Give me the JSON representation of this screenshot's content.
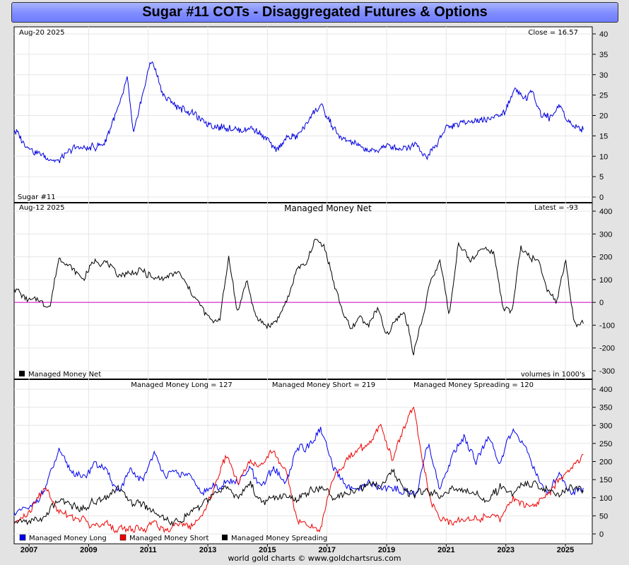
{
  "title": "Sugar #11 COTs - Disaggregated Futures & Options",
  "footer": "world gold charts © www.goldchartsrus.com",
  "colors": {
    "price": "#0000dd",
    "net": "#000000",
    "zero": "#cc00cc",
    "long": "#0000ee",
    "short": "#ee0000",
    "spreading": "#000000"
  },
  "chart_data": [
    {
      "type": "line",
      "id": "price",
      "date_label": "Aug-20  2025",
      "latest_label": "Close = 16.57",
      "series_label": "Sugar #11",
      "ylim": [
        0,
        40
      ],
      "yticks": [
        0,
        5,
        10,
        15,
        20,
        25,
        30,
        35,
        40
      ],
      "x": [
        2006.5,
        2007.0,
        2007.5,
        2008.0,
        2008.5,
        2009.0,
        2009.5,
        2010.0,
        2010.3,
        2010.5,
        2010.8,
        2011.1,
        2011.5,
        2012.0,
        2012.5,
        2013.0,
        2013.5,
        2014.0,
        2014.5,
        2015.0,
        2015.3,
        2015.7,
        2016.0,
        2016.5,
        2016.8,
        2017.0,
        2017.5,
        2018.0,
        2018.5,
        2019.0,
        2019.5,
        2020.0,
        2020.3,
        2020.6,
        2021.0,
        2021.5,
        2022.0,
        2022.5,
        2023.0,
        2023.3,
        2023.6,
        2023.9,
        2024.2,
        2024.5,
        2024.8,
        2025.2,
        2025.6
      ],
      "values": [
        16.5,
        12,
        10,
        8.8,
        12,
        12,
        12.8,
        22,
        29,
        15.5,
        25,
        34,
        25,
        22,
        20.5,
        18,
        17,
        16.5,
        17,
        14,
        11.5,
        14.5,
        15,
        20,
        23,
        19.5,
        14,
        13,
        11,
        12.5,
        12,
        13,
        9.5,
        12,
        17,
        18,
        19,
        19,
        21,
        27,
        24,
        26,
        20,
        19.5,
        22.5,
        17.5,
        16.5
      ]
    },
    {
      "type": "line",
      "id": "net",
      "date_label": "Aug-12  2025",
      "title": "Managed Money Net",
      "latest_label": "Latest = -93",
      "legend": "Managed Money Net",
      "units_label": "volumes in 1000's",
      "ylim": [
        -300,
        400
      ],
      "yticks": [
        -300,
        -200,
        -100,
        0,
        100,
        200,
        300,
        400
      ],
      "x": [
        2006.5,
        2006.9,
        2007.3,
        2007.7,
        2008.0,
        2008.4,
        2008.8,
        2009.2,
        2009.6,
        2010.0,
        2010.4,
        2010.8,
        2011.2,
        2011.6,
        2012.0,
        2012.4,
        2012.8,
        2013.1,
        2013.4,
        2013.7,
        2014.0,
        2014.3,
        2014.6,
        2015.0,
        2015.3,
        2015.7,
        2016.0,
        2016.3,
        2016.6,
        2016.9,
        2017.2,
        2017.5,
        2017.8,
        2018.1,
        2018.4,
        2018.7,
        2019.0,
        2019.3,
        2019.6,
        2019.9,
        2020.2,
        2020.5,
        2020.8,
        2021.1,
        2021.4,
        2021.8,
        2022.2,
        2022.6,
        2022.9,
        2023.2,
        2023.5,
        2023.8,
        2024.1,
        2024.4,
        2024.7,
        2025.0,
        2025.3,
        2025.6
      ],
      "values": [
        60,
        20,
        10,
        -20,
        200,
        150,
        100,
        180,
        170,
        120,
        130,
        140,
        100,
        110,
        130,
        50,
        -20,
        -80,
        -80,
        200,
        -50,
        100,
        -60,
        -100,
        -80,
        20,
        150,
        170,
        270,
        250,
        100,
        -30,
        -120,
        -60,
        -100,
        -30,
        -150,
        -80,
        -40,
        -220,
        -70,
        100,
        180,
        -60,
        260,
        180,
        240,
        220,
        -20,
        -50,
        250,
        200,
        180,
        60,
        0,
        180,
        -100,
        -93
      ]
    },
    {
      "type": "line",
      "id": "positions",
      "ylim": [
        0,
        400
      ],
      "yticks": [
        0,
        50,
        100,
        150,
        200,
        250,
        300,
        350,
        400
      ],
      "series": [
        {
          "name": "Managed Money Long",
          "latest_label": "Managed Money Long = 127",
          "x": [
            2006.5,
            2007.0,
            2007.5,
            2008.0,
            2008.4,
            2008.8,
            2009.2,
            2009.6,
            2010.0,
            2010.4,
            2010.8,
            2011.2,
            2011.6,
            2012.0,
            2012.4,
            2012.8,
            2013.2,
            2013.6,
            2014.0,
            2014.4,
            2014.8,
            2015.2,
            2015.6,
            2016.0,
            2016.4,
            2016.8,
            2017.2,
            2017.6,
            2018.0,
            2018.4,
            2018.8,
            2019.2,
            2019.6,
            2020.0,
            2020.4,
            2020.8,
            2021.2,
            2021.6,
            2022.0,
            2022.4,
            2022.8,
            2023.2,
            2023.6,
            2024.0,
            2024.4,
            2024.8,
            2025.2,
            2025.6
          ],
          "values": [
            60,
            70,
            120,
            230,
            180,
            150,
            200,
            170,
            120,
            170,
            150,
            220,
            160,
            170,
            160,
            110,
            130,
            140,
            140,
            180,
            130,
            180,
            140,
            240,
            240,
            290,
            180,
            140,
            120,
            140,
            130,
            120,
            120,
            110,
            250,
            120,
            220,
            270,
            200,
            270,
            190,
            290,
            250,
            170,
            110,
            170,
            110,
            127
          ]
        },
        {
          "name": "Managed Money Short",
          "latest_label": "Managed Money Short = 219",
          "x": [
            2006.5,
            2007.0,
            2007.5,
            2008.0,
            2008.4,
            2008.8,
            2009.2,
            2009.6,
            2010.0,
            2010.4,
            2010.8,
            2011.2,
            2011.6,
            2012.0,
            2012.4,
            2012.8,
            2013.2,
            2013.6,
            2014.0,
            2014.4,
            2014.8,
            2015.2,
            2015.6,
            2016.0,
            2016.4,
            2016.8,
            2017.2,
            2017.6,
            2018.0,
            2018.4,
            2018.8,
            2019.2,
            2019.6,
            2019.9,
            2020.2,
            2020.5,
            2020.8,
            2021.2,
            2021.6,
            2022.0,
            2022.4,
            2022.8,
            2023.2,
            2023.6,
            2024.0,
            2024.4,
            2024.8,
            2025.2,
            2025.6
          ],
          "values": [
            30,
            50,
            130,
            60,
            50,
            40,
            20,
            30,
            10,
            20,
            10,
            30,
            10,
            30,
            20,
            50,
            120,
            220,
            140,
            200,
            190,
            230,
            180,
            40,
            20,
            20,
            150,
            200,
            230,
            250,
            300,
            200,
            300,
            360,
            200,
            90,
            40,
            30,
            40,
            40,
            50,
            40,
            100,
            80,
            80,
            110,
            150,
            180,
            219
          ]
        },
        {
          "name": "Managed Money Spreading",
          "latest_label": "Managed Money Spreading = 120",
          "x": [
            2006.5,
            2007.0,
            2007.5,
            2008.0,
            2008.4,
            2008.8,
            2009.2,
            2009.6,
            2010.0,
            2010.4,
            2010.8,
            2011.2,
            2011.6,
            2012.0,
            2012.4,
            2012.8,
            2013.2,
            2013.6,
            2014.0,
            2014.4,
            2014.8,
            2015.2,
            2015.6,
            2016.0,
            2016.4,
            2016.8,
            2017.2,
            2017.6,
            2018.0,
            2018.4,
            2018.8,
            2019.2,
            2019.6,
            2020.0,
            2020.4,
            2020.8,
            2021.2,
            2021.6,
            2022.0,
            2022.4,
            2022.8,
            2023.2,
            2023.6,
            2024.0,
            2024.4,
            2024.8,
            2025.2,
            2025.6
          ],
          "values": [
            30,
            40,
            45,
            100,
            80,
            70,
            90,
            100,
            130,
            90,
            80,
            60,
            40,
            30,
            60,
            80,
            110,
            130,
            100,
            140,
            90,
            100,
            110,
            90,
            120,
            130,
            100,
            110,
            120,
            140,
            130,
            180,
            120,
            110,
            120,
            100,
            130,
            120,
            110,
            90,
            130,
            110,
            140,
            140,
            120,
            110,
            130,
            120
          ]
        }
      ],
      "legend": [
        "Managed Money Long",
        "Managed Money Short",
        "Managed Money Spreading"
      ]
    }
  ],
  "x_axis": {
    "range": [
      2006.5,
      2025.9
    ],
    "labels": [
      "2007",
      "2009",
      "2011",
      "2013",
      "2015",
      "2017",
      "2019",
      "2021",
      "2023",
      "2025"
    ],
    "label_years": [
      2007,
      2009,
      2011,
      2013,
      2015,
      2017,
      2019,
      2021,
      2023,
      2025
    ]
  }
}
